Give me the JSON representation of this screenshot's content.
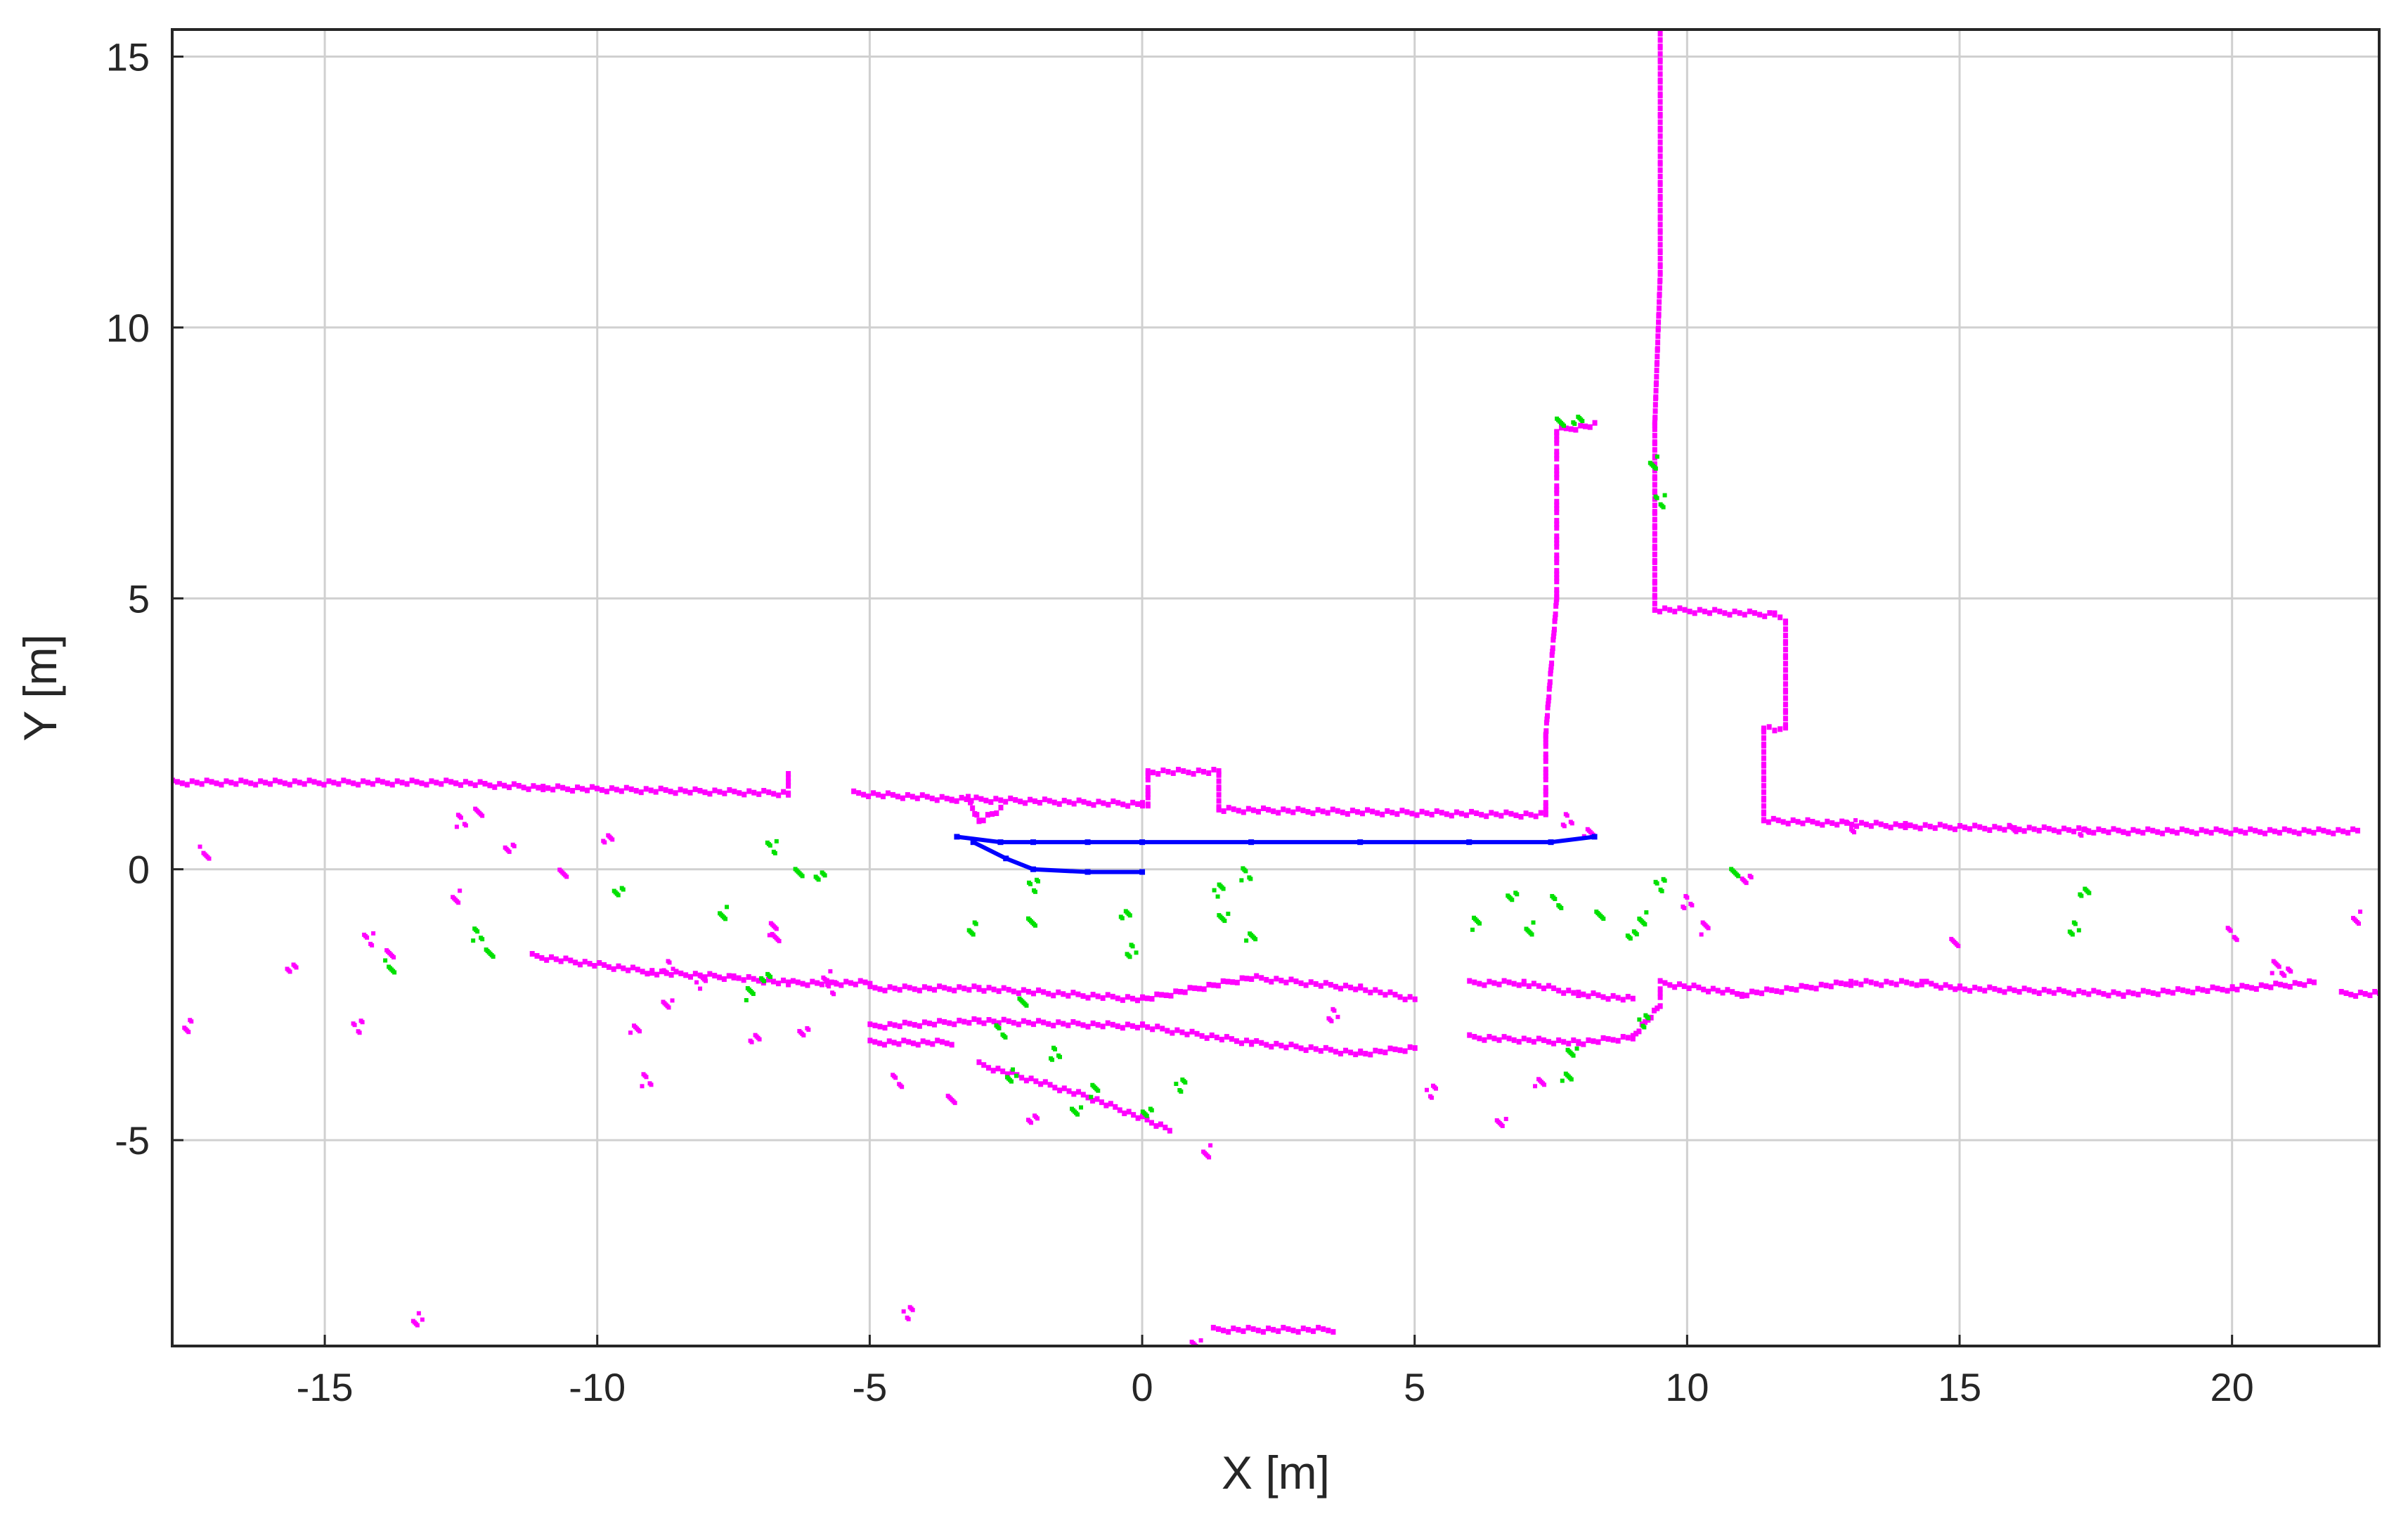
{
  "chart_data": {
    "type": "scatter",
    "xlabel": "X [m]",
    "ylabel": "Y [m]",
    "xlim": [
      -17.8,
      22.7
    ],
    "ylim": [
      -8.8,
      15.5
    ],
    "xticks": [
      -15,
      -10,
      -5,
      0,
      5,
      10,
      15,
      20
    ],
    "yticks": [
      15,
      10,
      5,
      0,
      -5
    ],
    "xtick_labels": [
      "-15",
      "-10",
      "-5",
      "0",
      "5",
      "10",
      "15",
      "20"
    ],
    "ytick_labels": [
      "15",
      "10",
      "5",
      "0",
      "-5"
    ],
    "grid": true,
    "colors": {
      "magenta": "#ff00ff",
      "green": "#00e000",
      "blue": "#0000ff"
    },
    "series": [
      {
        "color": "#ff00ff",
        "style": "points",
        "polylines": [
          [
            [
              -17.8,
              1.6
            ],
            [
              -12.6,
              1.6
            ],
            [
              -11.0,
              1.5
            ],
            [
              -6.5,
              1.4
            ],
            [
              -6.5,
              1.8
            ]
          ],
          [
            [
              -5.3,
              1.4
            ],
            [
              -3.5,
              1.3
            ],
            [
              0,
              1.2
            ],
            [
              0.1,
              1.2
            ],
            [
              0.1,
              1.8
            ],
            [
              1.4,
              1.8
            ],
            [
              1.4,
              1.1
            ],
            [
              7.4,
              1.0
            ],
            [
              7.4,
              2.5
            ],
            [
              7.6,
              5.0
            ],
            [
              7.6,
              8.1
            ],
            [
              8.3,
              8.2
            ]
          ],
          [
            [
              9.4,
              8.2
            ],
            [
              9.4,
              4.8
            ],
            [
              11.6,
              4.7
            ],
            [
              11.8,
              4.6
            ],
            [
              11.8,
              2.6
            ],
            [
              11.4,
              2.6
            ],
            [
              11.4,
              0.9
            ],
            [
              14.0,
              0.8
            ],
            [
              18.0,
              0.7
            ],
            [
              22.3,
              0.7
            ]
          ],
          [
            [
              9.5,
              15.5
            ],
            [
              9.5,
              11.0
            ],
            [
              9.4,
              8.2
            ]
          ],
          [
            [
              -3.2,
              1.3
            ],
            [
              -3.0,
              0.9
            ],
            [
              -2.6,
              1.1
            ]
          ],
          [
            [
              -11.2,
              -1.6
            ],
            [
              -9.0,
              -1.9
            ],
            [
              -7.5,
              -2.0
            ],
            [
              -6.5,
              -2.1
            ],
            [
              -5.0,
              -2.1
            ]
          ],
          [
            [
              -5.0,
              -2.2
            ],
            [
              -3.0,
              -2.2
            ],
            [
              0.0,
              -2.4
            ],
            [
              2.0,
              -2.0
            ],
            [
              4.0,
              -2.2
            ],
            [
              5.0,
              -2.4
            ]
          ],
          [
            [
              -5.0,
              -2.9
            ],
            [
              -3.0,
              -2.8
            ],
            [
              0.0,
              -2.9
            ],
            [
              2.0,
              -3.2
            ],
            [
              4.0,
              -3.4
            ],
            [
              5.0,
              -3.3
            ]
          ],
          [
            [
              6.0,
              -2.1
            ],
            [
              7.0,
              -2.1
            ],
            [
              8.0,
              -2.3
            ],
            [
              9.0,
              -2.4
            ]
          ],
          [
            [
              6.0,
              -3.1
            ],
            [
              8.0,
              -3.2
            ],
            [
              9.0,
              -3.1
            ],
            [
              9.5,
              -2.5
            ],
            [
              9.5,
              -2.2
            ]
          ],
          [
            [
              9.5,
              -2.1
            ],
            [
              11.0,
              -2.3
            ],
            [
              13.0,
              -2.1
            ],
            [
              14.3,
              -2.1
            ],
            [
              15.0,
              -2.2
            ],
            [
              18.0,
              -2.3
            ],
            [
              20.0,
              -2.2
            ],
            [
              21.5,
              -2.1
            ]
          ],
          [
            [
              -5.0,
              -3.2
            ],
            [
              -3.5,
              -3.2
            ]
          ],
          [
            [
              -3.0,
              -3.6
            ],
            [
              -1.0,
              -4.2
            ],
            [
              0.5,
              -4.8
            ]
          ],
          [
            [
              1.3,
              -8.5
            ],
            [
              3.5,
              -8.5
            ]
          ],
          [
            [
              22.0,
              -2.3
            ],
            [
              22.7,
              -2.3
            ]
          ]
        ],
        "points": [
          [
            -17.2,
            0.3
          ],
          [
            -12.5,
            0.9
          ],
          [
            -12.2,
            1.0
          ],
          [
            -11.6,
            0.4
          ],
          [
            -12.6,
            -0.5
          ],
          [
            -14.2,
            -1.3
          ],
          [
            -13.8,
            -1.6
          ],
          [
            -15.6,
            -1.8
          ],
          [
            -17.5,
            -2.9
          ],
          [
            -14.4,
            -2.9
          ],
          [
            -10.6,
            -0.1
          ],
          [
            -9.8,
            0.6
          ],
          [
            -8.7,
            -1.8
          ],
          [
            -8.1,
            -2.1
          ],
          [
            -8.7,
            -2.5
          ],
          [
            -9.3,
            -2.9
          ],
          [
            -9.1,
            -3.9
          ],
          [
            -6.8,
            -1.1
          ],
          [
            -6.2,
            -3.0
          ],
          [
            -5.8,
            -2.0
          ],
          [
            -4.5,
            -3.9
          ],
          [
            -3.5,
            -4.3
          ],
          [
            -2.0,
            -4.6
          ],
          [
            1.2,
            -5.2
          ],
          [
            -5.7,
            -2.2
          ],
          [
            -6.7,
            -1.3
          ],
          [
            -7.1,
            -3.1
          ],
          [
            3.5,
            -2.7
          ],
          [
            5.3,
            -4.1
          ],
          [
            6.6,
            -4.7
          ],
          [
            7.3,
            -3.9
          ],
          [
            10.0,
            -0.6
          ],
          [
            10.3,
            -1.1
          ],
          [
            11.1,
            -0.2
          ],
          [
            14.9,
            -1.3
          ],
          [
            20.0,
            -1.2
          ],
          [
            20.8,
            -1.8
          ],
          [
            21.0,
            -1.9
          ],
          [
            22.3,
            -0.9
          ],
          [
            13.0,
            0.8
          ],
          [
            16.0,
            0.7
          ],
          [
            17.3,
            0.7
          ],
          [
            -13.3,
            -8.3
          ],
          [
            -4.3,
            -8.2
          ],
          [
            1.0,
            -8.8
          ],
          [
            8.2,
            0.7
          ],
          [
            7.8,
            0.9
          ]
        ]
      },
      {
        "color": "#00e000",
        "style": "points",
        "points": [
          [
            -13.8,
            -1.8
          ],
          [
            -12.2,
            -1.2
          ],
          [
            -12.0,
            -1.6
          ],
          [
            -9.6,
            -0.4
          ],
          [
            -7.7,
            -0.8
          ],
          [
            -6.8,
            0.4
          ],
          [
            -6.3,
            -0.1
          ],
          [
            -5.9,
            -0.1
          ],
          [
            -3.1,
            -1.1
          ],
          [
            -2.0,
            -0.3
          ],
          [
            -2.0,
            -1.0
          ],
          [
            -0.3,
            -0.8
          ],
          [
            -0.2,
            -1.5
          ],
          [
            1.4,
            -0.4
          ],
          [
            1.5,
            -0.9
          ],
          [
            2.0,
            -1.2
          ],
          [
            1.9,
            -0.1
          ],
          [
            6.1,
            -1.0
          ],
          [
            6.8,
            -0.5
          ],
          [
            7.1,
            -1.1
          ],
          [
            7.6,
            -0.6
          ],
          [
            8.4,
            -0.9
          ],
          [
            9.0,
            -1.2
          ],
          [
            9.2,
            -0.9
          ],
          [
            9.5,
            -0.3
          ],
          [
            10.9,
            -0.1
          ],
          [
            17.3,
            -0.4
          ],
          [
            17.1,
            -1.1
          ],
          [
            9.2,
            -2.8
          ],
          [
            7.9,
            -3.4
          ],
          [
            7.8,
            -3.8
          ],
          [
            -1.6,
            -3.4
          ],
          [
            -0.9,
            -4.1
          ],
          [
            0.1,
            -4.5
          ],
          [
            -2.2,
            -2.4
          ],
          [
            -2.6,
            -3.0
          ],
          [
            -7.2,
            -2.3
          ],
          [
            -6.9,
            -2.0
          ],
          [
            9.4,
            7.5
          ],
          [
            9.5,
            6.8
          ],
          [
            7.7,
            8.2
          ],
          [
            8.0,
            8.3
          ],
          [
            -2.4,
            -3.8
          ],
          [
            0.7,
            -4.0
          ],
          [
            -1.2,
            -4.5
          ]
        ]
      },
      {
        "color": "#0000ff",
        "style": "line",
        "polylines": [
          [
            [
              -3.4,
              0.6
            ],
            [
              -2.6,
              0.5
            ],
            [
              -2.0,
              0.5
            ],
            [
              -1.0,
              0.5
            ],
            [
              0.0,
              0.5
            ],
            [
              2.0,
              0.5
            ],
            [
              4.0,
              0.5
            ],
            [
              6.0,
              0.5
            ],
            [
              7.5,
              0.5
            ],
            [
              8.3,
              0.6
            ]
          ],
          [
            [
              -3.1,
              0.5
            ],
            [
              -2.5,
              0.2
            ],
            [
              -2.0,
              0.0
            ],
            [
              -1.0,
              -0.05
            ],
            [
              0.0,
              -0.05
            ]
          ]
        ]
      }
    ]
  }
}
